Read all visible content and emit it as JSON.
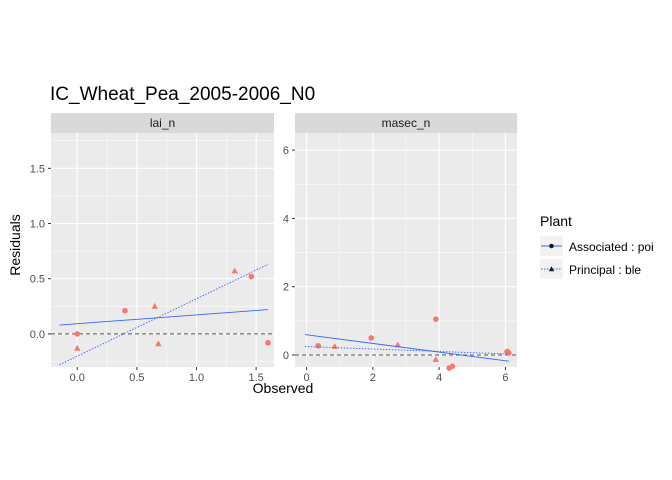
{
  "title": "IC_Wheat_Pea_2005-2006_N0",
  "xlabel": "Observed",
  "ylabel": "Residuals",
  "legend": {
    "title": "Plant",
    "items": [
      {
        "label": "Associated : poi",
        "shape": "circle",
        "linetype": "solid"
      },
      {
        "label": "Principal : ble",
        "shape": "triangle",
        "linetype": "dotted"
      }
    ]
  },
  "colors": {
    "panel_bg": "#ebebeb",
    "strip_bg": "#d9d9d9",
    "grid_major": "#ffffff",
    "points": "#f8766d",
    "lines": "#3366ff",
    "text": "#000000",
    "axis_text": "#4d4d4d",
    "zero_line": "#555555",
    "legend_key_bg": "#f2f2f2"
  },
  "chart_data": [
    {
      "type": "scatter",
      "panel": "lai_n",
      "xlim": [
        -0.22,
        1.65
      ],
      "ylim": [
        -0.3,
        1.82
      ],
      "x_ticks": [
        0.0,
        0.5,
        1.0,
        1.5
      ],
      "x_tick_labels": [
        "0.0",
        "0.5",
        "1.0",
        "1.5"
      ],
      "y_ticks": [
        0.0,
        0.5,
        1.0,
        1.5
      ],
      "y_tick_labels": [
        "0.0",
        "0.5",
        "1.0",
        "1.5"
      ],
      "series": [
        {
          "name": "Associated : poi",
          "shape": "circle",
          "x": [
            0.0,
            0.4,
            1.46,
            1.6
          ],
          "y": [
            0.0,
            0.21,
            0.52,
            -0.08
          ]
        },
        {
          "name": "Principal : ble",
          "shape": "triangle",
          "x": [
            0.0,
            0.65,
            0.68,
            1.32
          ],
          "y": [
            -0.13,
            0.25,
            -0.09,
            0.57
          ]
        }
      ],
      "fit_lines": [
        {
          "series": "Associated : poi",
          "linetype": "solid",
          "x": [
            -0.15,
            1.6
          ],
          "y": [
            0.08,
            0.22
          ]
        },
        {
          "series": "Principal : ble",
          "linetype": "dotted",
          "x": [
            -0.15,
            1.6
          ],
          "y": [
            -0.28,
            0.63
          ]
        }
      ],
      "hline": 0,
      "grid": true
    },
    {
      "type": "scatter",
      "panel": "masec_n",
      "xlim": [
        -0.35,
        6.35
      ],
      "ylim": [
        -0.35,
        6.5
      ],
      "x_ticks": [
        0,
        2,
        4,
        6
      ],
      "x_tick_labels": [
        "0",
        "2",
        "4",
        "6"
      ],
      "y_ticks": [
        0,
        2,
        4,
        6
      ],
      "y_tick_labels": [
        "0",
        "2",
        "4",
        "6"
      ],
      "series": [
        {
          "name": "Associated : poi",
          "shape": "circle",
          "x": [
            0.35,
            1.95,
            3.9,
            4.3,
            4.4,
            6.05,
            6.1
          ],
          "y": [
            0.27,
            0.5,
            1.05,
            -0.38,
            -0.33,
            0.1,
            0.06
          ]
        },
        {
          "name": "Principal : ble",
          "shape": "triangle",
          "x": [
            0.85,
            2.75,
            3.9,
            6.1
          ],
          "y": [
            0.25,
            0.3,
            -0.13,
            0.1
          ]
        }
      ],
      "fit_lines": [
        {
          "series": "Associated : poi",
          "linetype": "solid",
          "x": [
            -0.05,
            6.1
          ],
          "y": [
            0.6,
            -0.18
          ]
        },
        {
          "series": "Principal : ble",
          "linetype": "dotted",
          "x": [
            -0.05,
            6.1
          ],
          "y": [
            0.25,
            0.03
          ]
        }
      ],
      "hline": 0,
      "grid": true
    }
  ]
}
